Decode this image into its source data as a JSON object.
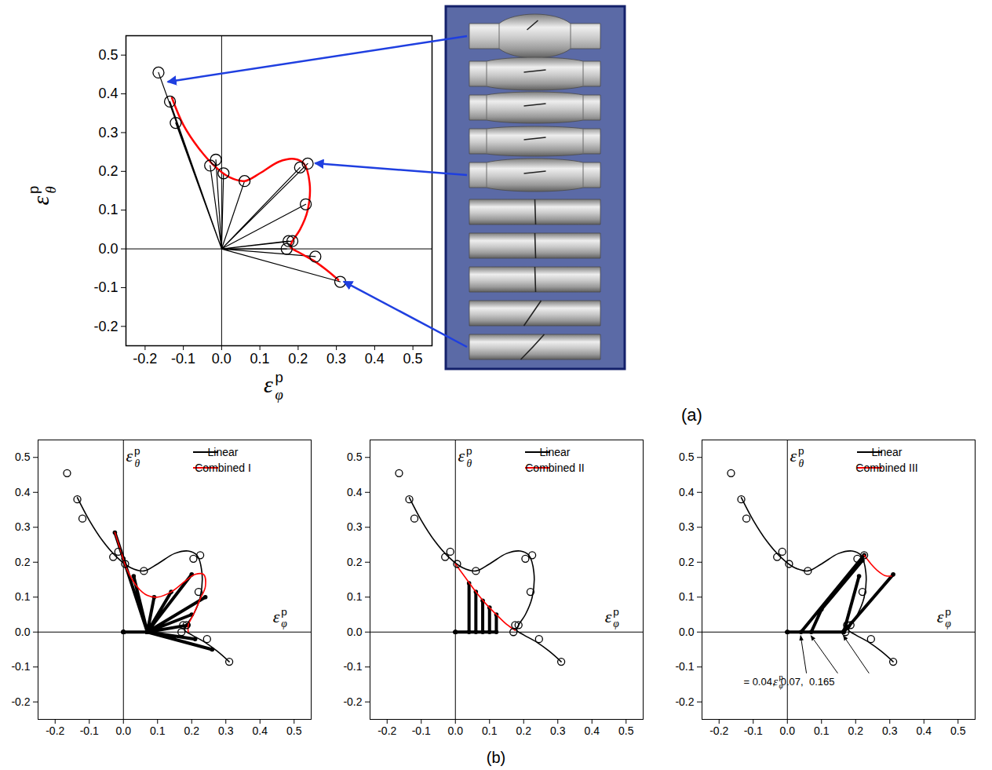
{
  "panel_labels": [
    "(a)",
    "(b)"
  ],
  "chart_data": [
    {
      "type": "line",
      "xlabel": {
        "symbol": "ε",
        "sub": "φ",
        "sup": "p"
      },
      "ylabel": {
        "symbol": "ε",
        "sub": "θ",
        "sup": "p"
      },
      "xlim": [
        -0.25,
        0.55
      ],
      "ylim": [
        -0.25,
        0.55
      ],
      "xticks": [
        -0.2,
        -0.1,
        {
          "value": 0,
          "label": "0.0"
        },
        0.1,
        0.2,
        0.3,
        0.4,
        0.5
      ],
      "yticks": [
        -0.2,
        -0.1,
        {
          "value": 0,
          "label": "0.0"
        },
        0.1,
        0.2,
        0.3,
        0.4,
        0.5
      ],
      "series": [
        {
          "type": "line",
          "color": "#000000",
          "line_style": "solid",
          "x": [
            0,
            -0.165,
            null,
            0,
            -0.135,
            null,
            0,
            -0.12,
            null,
            0,
            -0.03,
            null,
            0,
            -0.015,
            null,
            0,
            0.005,
            null,
            0,
            0.06,
            null,
            0,
            0.205,
            null,
            0,
            0.225,
            null,
            0,
            0.22,
            null,
            0,
            0.17,
            null,
            0,
            0.175,
            null,
            0,
            0.185,
            null,
            0,
            0.245,
            null,
            0,
            0.31
          ],
          "y": [
            0,
            0.455,
            null,
            0,
            0.38,
            null,
            0,
            0.325,
            null,
            0,
            0.215,
            null,
            0,
            0.23,
            null,
            0,
            0.195,
            null,
            0,
            0.175,
            null,
            0,
            0.21,
            null,
            0,
            0.22,
            null,
            0,
            0.115,
            null,
            0,
            0.0,
            null,
            0,
            0.02,
            null,
            0,
            0.02,
            null,
            0,
            -0.02,
            null,
            0,
            -0.085
          ]
        },
        {
          "type": "line",
          "color": "#ff0000",
          "line_style": "smooth",
          "x": [
            -0.13,
            -0.1,
            -0.06,
            -0.02,
            0.02,
            0.06,
            0.1,
            0.15,
            0.19,
            0.215,
            0.23,
            0.225,
            0.205,
            0.185,
            0.18,
            0.2,
            0.24,
            0.275,
            0.305
          ],
          "y": [
            0.39,
            0.32,
            0.26,
            0.215,
            0.185,
            0.175,
            0.195,
            0.225,
            0.232,
            0.22,
            0.17,
            0.1,
            0.05,
            0.02,
            0.005,
            -0.008,
            -0.03,
            -0.055,
            -0.08
          ]
        },
        {
          "type": "scatter",
          "color": "#000000",
          "marker": "open circle",
          "x": [
            -0.165,
            -0.135,
            -0.12,
            -0.03,
            -0.015,
            0.005,
            0.06,
            0.205,
            0.225,
            0.22,
            0.17,
            0.175,
            0.185,
            0.245,
            0.31
          ],
          "y": [
            0.455,
            0.38,
            0.325,
            0.215,
            0.23,
            0.195,
            0.175,
            0.21,
            0.22,
            0.115,
            0.0,
            0.02,
            0.02,
            -0.02,
            -0.085
          ]
        }
      ],
      "links": [
        {
          "x": -0.14,
          "y": 0.43
        },
        {
          "x": 0.245,
          "y": 0.22
        },
        {
          "x": 0.32,
          "y": -0.085
        }
      ]
    },
    {
      "type": "line",
      "xlabel": {
        "symbol": "ε",
        "sub": "φ",
        "sup": "p"
      },
      "ylabel": {
        "symbol": "ε",
        "sub": "θ",
        "sup": "p"
      },
      "xlim": [
        -0.25,
        0.55
      ],
      "ylim": [
        -0.25,
        0.55
      ],
      "xticks": [
        -0.2,
        -0.1,
        {
          "value": 0,
          "label": "0.0"
        },
        0.1,
        0.2,
        0.3,
        0.4,
        0.5
      ],
      "yticks": [
        -0.2,
        -0.1,
        {
          "value": 0,
          "label": "0.0"
        },
        0.1,
        0.2,
        0.3,
        0.4,
        0.5
      ],
      "legend": "upper right",
      "series": [
        {
          "name": "Linear",
          "type": "line",
          "color": "#000000",
          "line_style": "smooth",
          "x": [
            -0.135,
            -0.1,
            -0.06,
            -0.02,
            0.02,
            0.06,
            0.1,
            0.15,
            0.19,
            0.215,
            0.23,
            0.225,
            0.205,
            0.185,
            0.18,
            0.2,
            0.24,
            0.275,
            0.31
          ],
          "y": [
            0.385,
            0.32,
            0.26,
            0.215,
            0.185,
            0.175,
            0.195,
            0.225,
            0.232,
            0.22,
            0.17,
            0.1,
            0.05,
            0.02,
            0.005,
            -0.008,
            -0.03,
            -0.055,
            -0.085
          ]
        },
        {
          "type": "scatter",
          "color": "#000000",
          "marker": "open circle",
          "x": [
            -0.165,
            -0.135,
            -0.12,
            -0.03,
            -0.015,
            0.005,
            0.06,
            0.205,
            0.225,
            0.22,
            0.17,
            0.175,
            0.185,
            0.245,
            0.31
          ],
          "y": [
            0.455,
            0.38,
            0.325,
            0.215,
            0.23,
            0.195,
            0.175,
            0.21,
            0.22,
            0.115,
            0.0,
            0.02,
            0.02,
            -0.02,
            -0.085
          ]
        },
        {
          "type": "line",
          "color": "#000000",
          "marker": "filled circle",
          "line_style": "solid",
          "x": [
            0,
            0.07,
            -0.025,
            null,
            0,
            0.07,
            0,
            null,
            0,
            0.07,
            0.03,
            null,
            0,
            0.07,
            0.09,
            null,
            0,
            0.07,
            0.14,
            null,
            0,
            0.07,
            0.2,
            null,
            0,
            0.07,
            0.24,
            null,
            0,
            0.07,
            0.2,
            null,
            0,
            0.07,
            0.19,
            null,
            0,
            0.07,
            0.21,
            null,
            0,
            0.07,
            0.26
          ],
          "y": [
            0,
            0,
            0.285,
            null,
            0,
            0,
            0.21,
            null,
            0,
            0,
            0.16,
            null,
            0,
            0,
            0.1,
            null,
            0,
            0,
            0.115,
            null,
            0,
            0,
            0.165,
            null,
            0,
            0,
            0.1,
            null,
            0,
            0,
            0.05,
            null,
            0,
            0,
            0.02,
            null,
            0,
            0,
            -0.02,
            null,
            0,
            0,
            -0.05
          ]
        },
        {
          "name": "Combined I",
          "type": "line",
          "color": "#ff0000",
          "line_style": "smooth",
          "x": [
            -0.025,
            -0.01,
            0.01,
            0.04,
            0.07,
            0.1,
            0.14,
            0.18,
            0.21,
            0.235,
            0.24,
            0.225,
            0.205,
            0.19,
            0.19
          ],
          "y": [
            0.285,
            0.24,
            0.18,
            0.13,
            0.105,
            0.1,
            0.115,
            0.145,
            0.165,
            0.165,
            0.13,
            0.095,
            0.05,
            0.02,
            0.0
          ]
        }
      ]
    },
    {
      "type": "line",
      "xlabel": {
        "symbol": "ε",
        "sub": "φ",
        "sup": "p"
      },
      "ylabel": {
        "symbol": "ε",
        "sub": "θ",
        "sup": "p"
      },
      "xlim": [
        -0.25,
        0.55
      ],
      "ylim": [
        -0.25,
        0.55
      ],
      "xticks": [
        -0.2,
        -0.1,
        {
          "value": 0,
          "label": "0.0"
        },
        0.1,
        0.2,
        0.3,
        0.4,
        0.5
      ],
      "yticks": [
        -0.2,
        -0.1,
        {
          "value": 0,
          "label": "0.0"
        },
        0.1,
        0.2,
        0.3,
        0.4,
        0.5
      ],
      "legend": "upper right",
      "series": [
        {
          "name": "Linear",
          "type": "line",
          "color": "#000000",
          "line_style": "smooth",
          "x": [
            -0.135,
            -0.1,
            -0.06,
            -0.02,
            0.02,
            0.06,
            0.1,
            0.15,
            0.19,
            0.215,
            0.23,
            0.225,
            0.205,
            0.185,
            0.18,
            0.2,
            0.24,
            0.275,
            0.31
          ],
          "y": [
            0.385,
            0.32,
            0.26,
            0.215,
            0.185,
            0.175,
            0.195,
            0.225,
            0.232,
            0.22,
            0.17,
            0.1,
            0.05,
            0.02,
            0.005,
            -0.008,
            -0.03,
            -0.055,
            -0.085
          ]
        },
        {
          "type": "scatter",
          "color": "#000000",
          "marker": "open circle",
          "x": [
            -0.165,
            -0.135,
            -0.12,
            -0.03,
            -0.015,
            0.005,
            0.06,
            0.205,
            0.225,
            0.22,
            0.17,
            0.175,
            0.185,
            0.245,
            0.31
          ],
          "y": [
            0.455,
            0.38,
            0.325,
            0.215,
            0.23,
            0.195,
            0.175,
            0.21,
            0.22,
            0.115,
            0.0,
            0.02,
            0.02,
            -0.02,
            -0.085
          ]
        },
        {
          "type": "line",
          "color": "#000000",
          "marker": "filled circle",
          "line_style": "solid",
          "x": [
            0,
            0.04,
            0.04,
            null,
            0,
            0.06,
            0.06,
            null,
            0,
            0.08,
            0.08,
            null,
            0,
            0.1,
            0.1,
            null,
            0,
            0.12,
            0.12
          ],
          "y": [
            0,
            0,
            0.14,
            null,
            0,
            0,
            0.115,
            null,
            0,
            0,
            0.09,
            null,
            0,
            0,
            0.07,
            null,
            0,
            0,
            0.05
          ]
        },
        {
          "name": "Combined II",
          "type": "line",
          "color": "#ff0000",
          "line_style": "smooth",
          "x": [
            0,
            0.03,
            0.06,
            0.09,
            0.12,
            0.15,
            0.175
          ],
          "y": [
            0.195,
            0.155,
            0.115,
            0.08,
            0.05,
            0.022,
            0.005
          ]
        }
      ]
    },
    {
      "type": "line",
      "xlabel": {
        "symbol": "ε",
        "sub": "φ",
        "sup": "p"
      },
      "ylabel": {
        "symbol": "ε",
        "sub": "θ",
        "sup": "p"
      },
      "xlim": [
        -0.25,
        0.55
      ],
      "ylim": [
        -0.25,
        0.55
      ],
      "xticks": [
        -0.2,
        -0.1,
        {
          "value": 0,
          "label": "0.0"
        },
        0.1,
        0.2,
        0.3,
        0.4,
        0.5
      ],
      "yticks": [
        -0.2,
        -0.1,
        {
          "value": 0,
          "label": "0.0"
        },
        0.1,
        0.2,
        0.3,
        0.4,
        0.5
      ],
      "legend": "upper right",
      "series": [
        {
          "name": "Linear",
          "type": "line",
          "color": "#000000",
          "line_style": "smooth",
          "x": [
            -0.135,
            -0.1,
            -0.06,
            -0.02,
            0.02,
            0.06,
            0.1,
            0.15,
            0.19,
            0.215,
            0.23,
            0.225,
            0.205,
            0.185,
            0.18,
            0.2,
            0.24,
            0.275,
            0.31
          ],
          "y": [
            0.385,
            0.32,
            0.26,
            0.215,
            0.185,
            0.175,
            0.195,
            0.225,
            0.232,
            0.22,
            0.17,
            0.1,
            0.05,
            0.02,
            0.005,
            -0.008,
            -0.03,
            -0.055,
            -0.085
          ]
        },
        {
          "type": "scatter",
          "color": "#000000",
          "marker": "open circle",
          "x": [
            -0.165,
            -0.135,
            -0.12,
            -0.03,
            -0.015,
            0.005,
            0.06,
            0.205,
            0.225,
            0.22,
            0.17,
            0.175,
            0.185,
            0.245,
            0.31
          ],
          "y": [
            0.455,
            0.38,
            0.325,
            0.215,
            0.23,
            0.195,
            0.175,
            0.21,
            0.22,
            0.115,
            0.0,
            0.02,
            0.02,
            -0.02,
            -0.085
          ]
        },
        {
          "type": "line",
          "color": "#000000",
          "marker": "filled circle",
          "line_style": "solid",
          "x": [
            0,
            0.04,
            0.225,
            null,
            0,
            0.07,
            0.1,
            0.22,
            null,
            0,
            0.165,
            0.21,
            null,
            0,
            0.165,
            0.31
          ],
          "y": [
            0,
            0,
            0.22,
            null,
            0,
            0,
            0.065,
            0.205,
            null,
            0,
            0,
            0.16,
            null,
            0,
            0,
            0.165
          ]
        },
        {
          "name": "Combined III",
          "type": "line",
          "color": "#ff0000",
          "line_style": "smooth",
          "x": [
            0.225,
            0.245,
            0.265,
            0.285,
            0.305
          ],
          "y": [
            0.22,
            0.195,
            0.175,
            0.162,
            0.16
          ]
        }
      ],
      "annotations": [
        {
          "label": {
            "symbol": "ε",
            "sub": "φ",
            "sup": "p"
          },
          "text": " = 0.04,  0.07,  0.165",
          "x": [
            0.04,
            0.07,
            0.165
          ],
          "y": [
            0,
            0,
            0
          ]
        }
      ]
    }
  ]
}
